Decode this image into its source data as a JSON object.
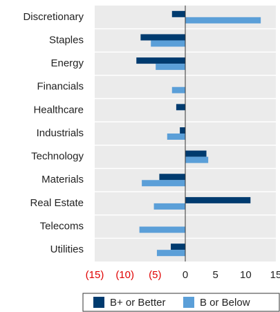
{
  "chart_data": {
    "type": "hbar",
    "categories": [
      "Discretionary",
      "Staples",
      "Energy",
      "Financials",
      "Healthcare",
      "Industrials",
      "Technology",
      "Materials",
      "Real Estate",
      "Telecoms",
      "Utilities"
    ],
    "series": [
      {
        "name": "B+ or Better",
        "color": "#003b6f",
        "values": [
          -2.2,
          -7.4,
          -8.1,
          0,
          -1.5,
          -0.9,
          3.5,
          -4.3,
          10.8,
          0,
          -2.4
        ]
      },
      {
        "name": "B or Below",
        "color": "#5b9fd8",
        "values": [
          12.5,
          -5.7,
          -4.9,
          -2.2,
          0,
          -3.0,
          3.8,
          -7.2,
          -5.2,
          -7.6,
          -4.7
        ]
      }
    ],
    "xlim": [
      -15,
      15
    ],
    "xticks": [
      {
        "value": -15,
        "label": "(15)"
      },
      {
        "value": -10,
        "label": "(10)"
      },
      {
        "value": -5,
        "label": "(5)"
      },
      0,
      5,
      10,
      15
    ],
    "negative_tick_color": "#e00000",
    "legend": "bottom"
  }
}
